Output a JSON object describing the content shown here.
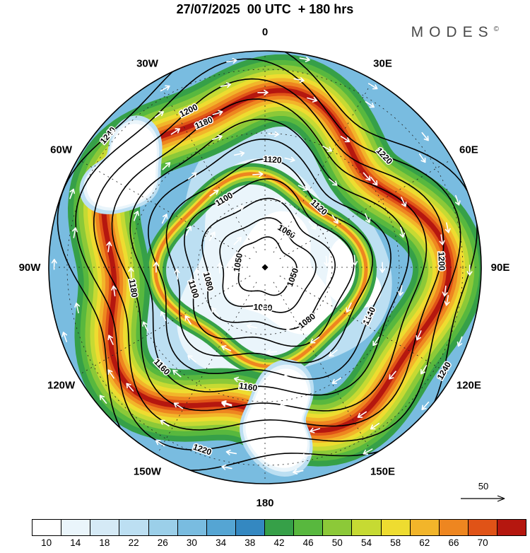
{
  "header": {
    "title": "27/07/2025  00 UTC  + 180 hrs",
    "brand": "MODES",
    "brand_mark": "©"
  },
  "map": {
    "longitude_labels": [
      {
        "label": "0",
        "deg": 0
      },
      {
        "label": "30E",
        "deg": 30
      },
      {
        "label": "60E",
        "deg": 60
      },
      {
        "label": "90E",
        "deg": 90
      },
      {
        "label": "120E",
        "deg": 120
      },
      {
        "label": "150E",
        "deg": 150
      },
      {
        "label": "180",
        "deg": 180
      },
      {
        "label": "150W",
        "deg": 210
      },
      {
        "label": "120W",
        "deg": 240
      },
      {
        "label": "90W",
        "deg": 270
      },
      {
        "label": "60W",
        "deg": 300
      },
      {
        "label": "30W",
        "deg": 330
      }
    ],
    "wind_reference": {
      "label": "50"
    }
  },
  "chart_data": {
    "type": "heatmap",
    "title": "27/07/2025 00 UTC + 180 hrs",
    "contour_levels": [
      1050,
      1060,
      1080,
      1100,
      1120,
      1140,
      1160,
      1180,
      1200,
      1220,
      1240
    ],
    "colorbar": {
      "tick_labels": [
        "10",
        "14",
        "18",
        "22",
        "26",
        "30",
        "34",
        "38",
        "42",
        "46",
        "50",
        "54",
        "58",
        "62",
        "66",
        "70"
      ],
      "colors": [
        "#ffffff",
        "#eaf5fb",
        "#d5eaf6",
        "#bcdff2",
        "#9bcfe9",
        "#79bce0",
        "#55a5d3",
        "#3488c1",
        "#36a048",
        "#58b83e",
        "#8cc938",
        "#c6da33",
        "#eedc30",
        "#f2b52a",
        "#ee8620",
        "#e05317",
        "#b5170f"
      ]
    },
    "wind_reference_value": "50"
  }
}
